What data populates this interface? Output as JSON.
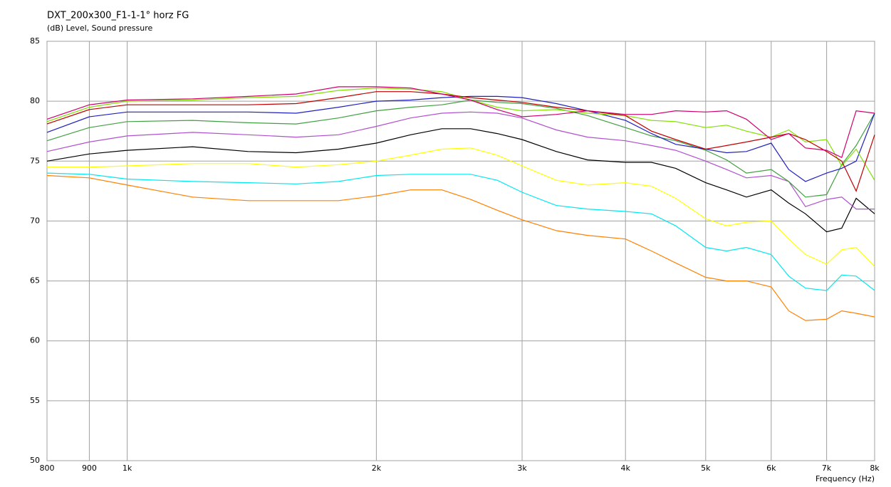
{
  "chart_data": {
    "type": "line",
    "title": "DXT_200x300_F1-1-1° horz FG",
    "subtitle": "(dB)  Level, Sound pressure",
    "x_label": "Frequency (Hz)",
    "x_scale": "log",
    "grid": true,
    "xlim": [
      800,
      8000
    ],
    "ylim": [
      50,
      85
    ],
    "xticks": [
      800,
      900,
      {
        "value": 1000,
        "label": "1k"
      },
      {
        "value": 2000,
        "label": "2k"
      },
      {
        "value": 3000,
        "label": "3k"
      },
      {
        "value": 4000,
        "label": "4k"
      },
      {
        "value": 5000,
        "label": "5k"
      },
      {
        "value": 6000,
        "label": "6k"
      },
      {
        "value": 7000,
        "label": "7k"
      },
      {
        "value": 8000,
        "label": "8k"
      }
    ],
    "yticks": [
      50,
      55,
      60,
      65,
      70,
      75,
      80,
      85
    ],
    "x": [
      800,
      900,
      1000,
      1200,
      1400,
      1600,
      1800,
      2000,
      2200,
      2400,
      2600,
      2800,
      3000,
      3300,
      3600,
      4000,
      4300,
      4600,
      5000,
      5300,
      5600,
      6000,
      6300,
      6600,
      7000,
      7300,
      7600,
      8000
    ],
    "series": [
      {
        "color": "#ff8000",
        "values": [
          73.8,
          73.6,
          73.0,
          72.0,
          71.7,
          71.7,
          71.7,
          72.1,
          72.6,
          72.6,
          71.8,
          70.9,
          70.1,
          69.2,
          68.8,
          68.5,
          67.5,
          66.5,
          65.3,
          65.0,
          65.0,
          64.5,
          62.5,
          61.7,
          61.8,
          62.5,
          62.3,
          62.0
        ]
      },
      {
        "color": "#00e8f0",
        "values": [
          74.0,
          73.9,
          73.5,
          73.3,
          73.2,
          73.1,
          73.3,
          73.8,
          73.9,
          73.9,
          73.9,
          73.4,
          72.4,
          71.3,
          71.0,
          70.8,
          70.6,
          69.6,
          67.8,
          67.5,
          67.8,
          67.2,
          65.4,
          64.4,
          64.2,
          65.5,
          65.4,
          64.2
        ]
      },
      {
        "color": "#ffff00",
        "values": [
          74.5,
          74.5,
          74.6,
          74.8,
          74.8,
          74.5,
          74.7,
          75.0,
          75.5,
          76.0,
          76.1,
          75.5,
          74.6,
          73.4,
          73.0,
          73.2,
          72.9,
          71.9,
          70.2,
          69.6,
          69.9,
          70.0,
          68.5,
          67.2,
          66.4,
          67.6,
          67.8,
          66.2
        ]
      },
      {
        "color": "#000000",
        "values": [
          75.0,
          75.6,
          75.9,
          76.2,
          75.8,
          75.7,
          76.0,
          76.5,
          77.2,
          77.7,
          77.7,
          77.3,
          76.8,
          75.8,
          75.1,
          74.9,
          74.9,
          74.4,
          73.2,
          72.6,
          72.0,
          72.6,
          71.5,
          70.6,
          69.1,
          69.4,
          71.9,
          70.6
        ]
      },
      {
        "color": "#b050d0",
        "values": [
          75.8,
          76.6,
          77.1,
          77.4,
          77.2,
          77.0,
          77.2,
          77.9,
          78.6,
          79.0,
          79.1,
          79.0,
          78.6,
          77.6,
          77.0,
          76.7,
          76.3,
          75.9,
          75.0,
          74.3,
          73.6,
          73.8,
          73.3,
          71.2,
          71.8,
          72.0,
          71.0,
          71.0
        ]
      },
      {
        "color": "#40a040",
        "values": [
          76.7,
          77.8,
          78.3,
          78.4,
          78.2,
          78.1,
          78.6,
          79.2,
          79.5,
          79.7,
          80.1,
          79.9,
          79.8,
          79.4,
          78.8,
          77.8,
          77.1,
          76.7,
          75.9,
          75.1,
          74.0,
          74.3,
          73.3,
          72.0,
          72.2,
          74.7,
          76.3,
          79.0
        ]
      },
      {
        "color": "#2020c0",
        "values": [
          77.4,
          78.7,
          79.1,
          79.1,
          79.1,
          79.0,
          79.5,
          80.0,
          80.1,
          80.3,
          80.4,
          80.4,
          80.3,
          79.8,
          79.2,
          78.4,
          77.3,
          76.4,
          76.0,
          75.7,
          75.8,
          76.5,
          74.3,
          73.3,
          74.0,
          74.4,
          75.0,
          79.0
        ]
      },
      {
        "color": "#80e000",
        "values": [
          78.3,
          79.5,
          80.0,
          80.1,
          80.3,
          80.4,
          80.9,
          81.1,
          81.0,
          80.8,
          80.1,
          79.5,
          79.2,
          79.3,
          79.0,
          78.8,
          78.4,
          78.3,
          77.8,
          78.0,
          77.5,
          77.0,
          77.6,
          76.6,
          76.8,
          74.6,
          76.0,
          73.4
        ]
      },
      {
        "color": "#c00000",
        "values": [
          78.1,
          79.3,
          79.7,
          79.7,
          79.7,
          79.8,
          80.3,
          80.8,
          80.8,
          80.6,
          80.3,
          80.1,
          79.9,
          79.5,
          79.2,
          78.8,
          77.5,
          76.8,
          76.0,
          76.3,
          76.6,
          77.0,
          77.3,
          76.8,
          75.8,
          75.0,
          72.5,
          77.2
        ]
      },
      {
        "color": "#d0006f",
        "values": [
          78.5,
          79.7,
          80.1,
          80.2,
          80.4,
          80.6,
          81.2,
          81.2,
          81.1,
          80.6,
          80.1,
          79.3,
          78.7,
          78.9,
          79.2,
          78.9,
          78.9,
          79.2,
          79.1,
          79.2,
          78.5,
          76.8,
          77.3,
          76.1,
          75.9,
          75.3,
          79.2,
          79.0
        ]
      }
    ]
  }
}
